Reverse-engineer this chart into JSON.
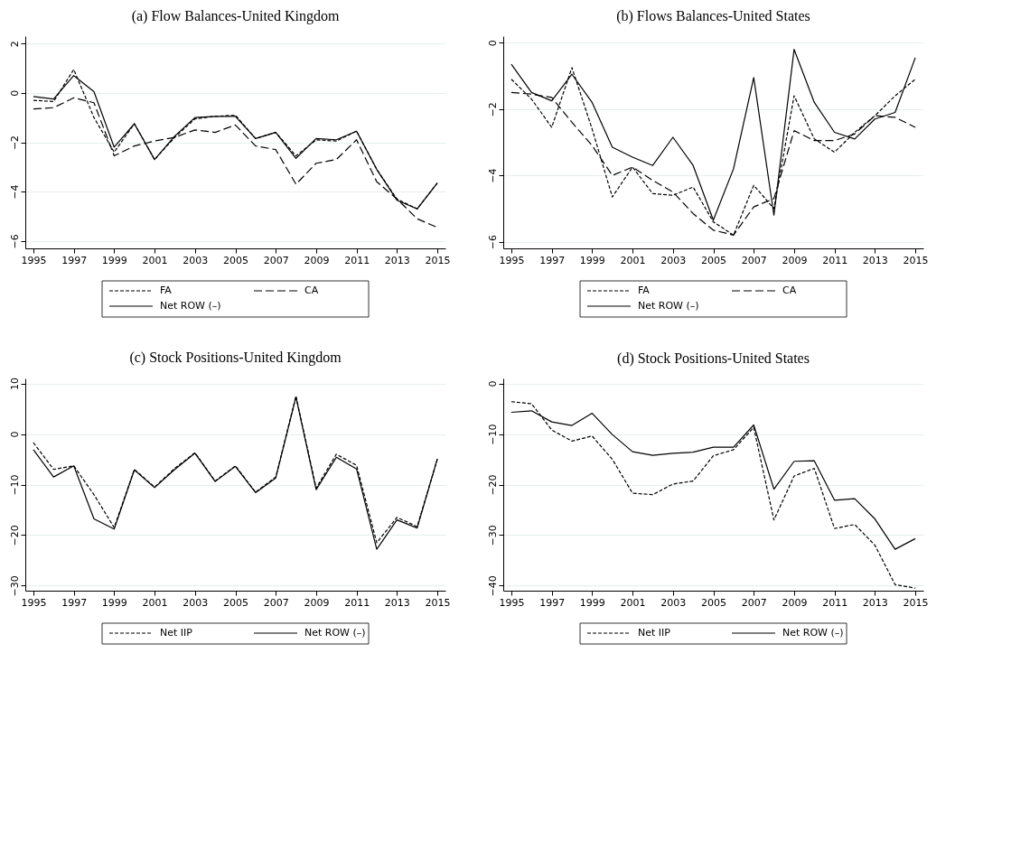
{
  "chart_data": [
    {
      "type": "line",
      "title": "(a) Flow Balances-United Kingdom",
      "x": [
        1995,
        1996,
        1997,
        1998,
        1999,
        2000,
        2001,
        2002,
        2003,
        2004,
        2005,
        2006,
        2007,
        2008,
        2009,
        2010,
        2011,
        2012,
        2013,
        2014,
        2015
      ],
      "xlim": [
        1994.6,
        2015.4
      ],
      "xticks": [
        1995,
        1997,
        1999,
        2001,
        2003,
        2005,
        2007,
        2009,
        2011,
        2013,
        2015
      ],
      "ylim": [
        -6.3,
        2.3
      ],
      "yticks": [
        -6,
        -4,
        -2,
        0,
        2
      ],
      "grid": "y",
      "legend": "bottom",
      "marker": "none",
      "series": [
        {
          "name": "FA",
          "color": "#000000",
          "line_style": "dotted",
          "values": [
            -0.3,
            -0.35,
            0.95,
            -1.0,
            -2.4,
            -1.25,
            -2.7,
            -1.8,
            -1.05,
            -0.95,
            -0.9,
            -1.85,
            -1.6,
            -2.55,
            -1.9,
            -1.95,
            -1.55,
            -3.1,
            -4.3,
            -4.7,
            -3.65
          ]
        },
        {
          "name": "CA",
          "color": "#000000",
          "line_style": "dashed",
          "values": [
            -0.65,
            -0.6,
            -0.2,
            -0.4,
            -2.55,
            -2.15,
            -1.95,
            -1.8,
            -1.5,
            -1.6,
            -1.3,
            -2.15,
            -2.3,
            -3.7,
            -2.85,
            -2.7,
            -1.9,
            -3.6,
            -4.3,
            -5.1,
            -5.45
          ]
        },
        {
          "name": "Net ROW (–)",
          "color": "#000000",
          "line_style": "solid",
          "values": [
            -0.15,
            -0.25,
            0.7,
            0.05,
            -2.2,
            -1.25,
            -2.7,
            -1.75,
            -1.0,
            -0.95,
            -0.95,
            -1.85,
            -1.6,
            -2.65,
            -1.85,
            -1.9,
            -1.55,
            -3.1,
            -4.35,
            -4.7,
            -3.65
          ]
        }
      ]
    },
    {
      "type": "line",
      "title": "(b) Flows Balances-United States",
      "x": [
        1995,
        1996,
        1997,
        1998,
        1999,
        2000,
        2001,
        2002,
        2003,
        2004,
        2005,
        2006,
        2007,
        2008,
        2009,
        2010,
        2011,
        2012,
        2013,
        2014,
        2015
      ],
      "xlim": [
        1994.6,
        2015.4
      ],
      "xticks": [
        1995,
        1997,
        1999,
        2001,
        2003,
        2005,
        2007,
        2009,
        2011,
        2013,
        2015
      ],
      "ylim": [
        -6.2,
        0.2
      ],
      "yticks": [
        -6,
        -4,
        -2,
        0
      ],
      "grid": "y",
      "legend": "bottom",
      "marker": "none",
      "series": [
        {
          "name": "FA",
          "color": "#000000",
          "line_style": "dotted",
          "values": [
            -1.1,
            -1.7,
            -2.55,
            -0.75,
            -2.6,
            -4.65,
            -3.75,
            -4.55,
            -4.6,
            -4.35,
            -5.4,
            -5.8,
            -4.3,
            -5.0,
            -1.6,
            -2.9,
            -3.3,
            -2.7,
            -2.2,
            -1.6,
            -1.1
          ]
        },
        {
          "name": "CA",
          "color": "#000000",
          "line_style": "dashed",
          "values": [
            -1.5,
            -1.55,
            -1.65,
            -2.4,
            -3.1,
            -4.0,
            -3.75,
            -4.15,
            -4.5,
            -5.15,
            -5.65,
            -5.8,
            -4.95,
            -4.7,
            -2.65,
            -2.95,
            -2.95,
            -2.75,
            -2.2,
            -2.25,
            -2.55
          ]
        },
        {
          "name": "Net ROW (–)",
          "color": "#000000",
          "line_style": "solid",
          "values": [
            -0.65,
            -1.5,
            -1.75,
            -0.95,
            -1.8,
            -3.15,
            -3.45,
            -3.7,
            -2.85,
            -3.7,
            -5.35,
            -3.8,
            -1.05,
            -5.2,
            -0.2,
            -1.8,
            -2.7,
            -2.9,
            -2.3,
            -2.1,
            -0.45
          ]
        }
      ]
    },
    {
      "type": "line",
      "title": "(c) Stock Positions-United Kingdom",
      "x": [
        1995,
        1996,
        1997,
        1998,
        1999,
        2000,
        2001,
        2002,
        2003,
        2004,
        2005,
        2006,
        2007,
        2008,
        2009,
        2010,
        2011,
        2012,
        2013,
        2014,
        2015
      ],
      "xlim": [
        1994.6,
        2015.4
      ],
      "xticks": [
        1995,
        1997,
        1999,
        2001,
        2003,
        2005,
        2007,
        2009,
        2011,
        2013,
        2015
      ],
      "ylim": [
        -31,
        11
      ],
      "yticks": [
        -30,
        -20,
        -10,
        0,
        10
      ],
      "grid": "y",
      "legend": "bottom",
      "marker": "none",
      "series": [
        {
          "name": "Net IIP",
          "color": "#000000",
          "line_style": "dotted",
          "values": [
            -1.7,
            -7.0,
            -6.3,
            -12,
            -18.5,
            -7.0,
            -10.5,
            -6.8,
            -3.7,
            -9.3,
            -6.3,
            -11.5,
            -8.5,
            7.5,
            -10.7,
            -4.0,
            -6.2,
            -21.5,
            -16.5,
            -18.3,
            -5.0
          ]
        },
        {
          "name": "Net ROW (–)",
          "color": "#000000",
          "line_style": "solid",
          "values": [
            -3.1,
            -8.5,
            -6.3,
            -16.8,
            -18.8,
            -7.1,
            -10.6,
            -7.0,
            -3.8,
            -9.4,
            -6.4,
            -11.6,
            -8.7,
            7.3,
            -11.0,
            -4.6,
            -6.9,
            -22.8,
            -17.0,
            -18.6,
            -4.9
          ]
        }
      ]
    },
    {
      "type": "line",
      "title": "(d) Stock Positions-United States",
      "x": [
        1995,
        1996,
        1997,
        1998,
        1999,
        2000,
        2001,
        2002,
        2003,
        2004,
        2005,
        2006,
        2007,
        2008,
        2009,
        2010,
        2011,
        2012,
        2013,
        2014,
        2015
      ],
      "xlim": [
        1994.6,
        2015.4
      ],
      "xticks": [
        1995,
        1997,
        1999,
        2001,
        2003,
        2005,
        2007,
        2009,
        2011,
        2013,
        2015
      ],
      "ylim": [
        -41,
        1
      ],
      "yticks": [
        -40,
        -30,
        -20,
        -10,
        0
      ],
      "grid": "y",
      "legend": "bottom",
      "marker": "none",
      "series": [
        {
          "name": "Net IIP",
          "color": "#000000",
          "line_style": "dotted",
          "values": [
            -3.6,
            -4.0,
            -9.2,
            -11.4,
            -10.4,
            -15,
            -21.7,
            -22,
            -19.9,
            -19.3,
            -14.3,
            -13.1,
            -8.7,
            -27,
            -18.3,
            -16.8,
            -28.7,
            -27.9,
            -32,
            -39.8,
            -40.5
          ]
        },
        {
          "name": "Net ROW (–)",
          "color": "#000000",
          "line_style": "solid",
          "values": [
            -5.7,
            -5.4,
            -7.6,
            -8.3,
            -5.9,
            -10.1,
            -13.5,
            -14.2,
            -13.8,
            -13.6,
            -12.6,
            -12.6,
            -8.2,
            -20.9,
            -15.4,
            -15.3,
            -23.1,
            -22.8,
            -26.8,
            -32.8,
            -30.7
          ]
        }
      ]
    }
  ]
}
